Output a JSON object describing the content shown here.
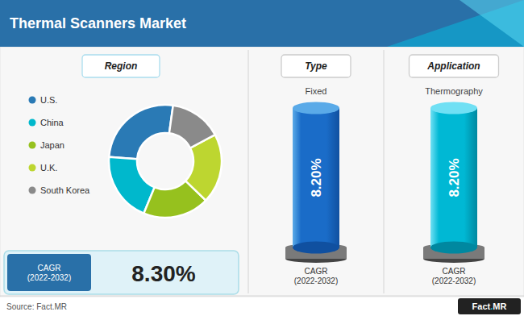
{
  "chart_data": {
    "type": "pie",
    "title": "Thermal Scanners Market",
    "categories": [
      "U.S.",
      "China",
      "Japan",
      "U.K.",
      "South Korea"
    ],
    "values": [
      26,
      20,
      19,
      20,
      15
    ],
    "colors": [
      "#2a7ab5",
      "#00b8cc",
      "#96c11e",
      "#bdd630",
      "#8a8a8a"
    ],
    "legend": "left",
    "annotations": [
      "Region",
      "CAGR\n(2022-2032)",
      "8.30%",
      "Type",
      "Fixed",
      "8.20%",
      "CAGR\n(2022-2032)",
      "Application",
      "Thermography",
      "8.20%",
      "CAGR\n(2022-2032)",
      "Source: Fact.MR",
      "Fact",
      ".",
      "MR"
    ]
  }
}
